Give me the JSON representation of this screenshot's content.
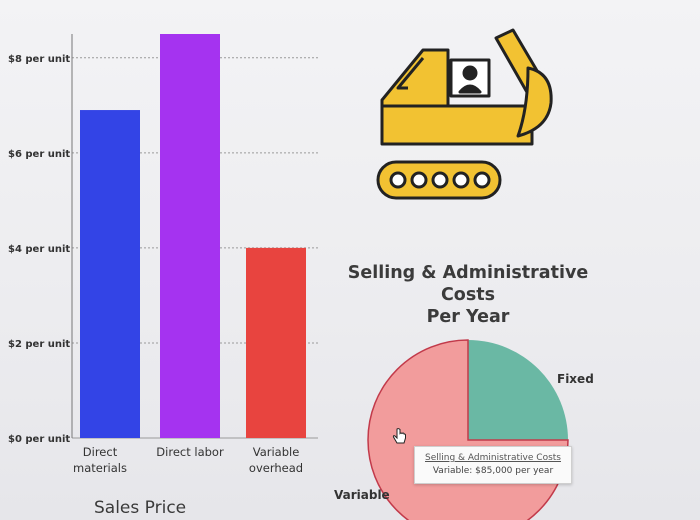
{
  "chart_data": [
    {
      "type": "bar",
      "categories": [
        "Direct materials",
        "Direct labor",
        "Variable overhead"
      ],
      "category_lines": [
        [
          "Direct",
          "materials"
        ],
        [
          "Direct labor"
        ],
        [
          "Variable",
          "overhead"
        ]
      ],
      "values": [
        6.9,
        8.5,
        4.0
      ],
      "yticks": [
        "$0 per unit",
        "$2 per unit",
        "$4 per unit",
        "$6 per unit",
        "$8 per unit"
      ],
      "ytick_values": [
        0,
        2,
        4,
        6,
        8
      ],
      "ylim": [
        0,
        8.5
      ],
      "grid": true,
      "colors": [
        "#3344e6",
        "#a533f0",
        "#e8443f"
      ],
      "xlabel": "Sales Price"
    },
    {
      "type": "pie",
      "title": "Selling & Administrative Costs Per Year",
      "title_lines": [
        "Selling & Administrative Costs",
        "Per Year"
      ],
      "slices": [
        {
          "label": "Fixed",
          "value": 25,
          "color": "#6ab8a4"
        },
        {
          "label": "Variable",
          "value": 75,
          "color": "#f29c9c"
        }
      ],
      "tooltip": {
        "line1": "Selling & Administrative Costs",
        "line2": "Variable: $85,000 per year"
      }
    }
  ],
  "colors": {
    "excavator_body": "#f2c232",
    "excavator_outline": "#222222"
  },
  "icons": [
    "excavator-icon",
    "hand-cursor-icon"
  ]
}
